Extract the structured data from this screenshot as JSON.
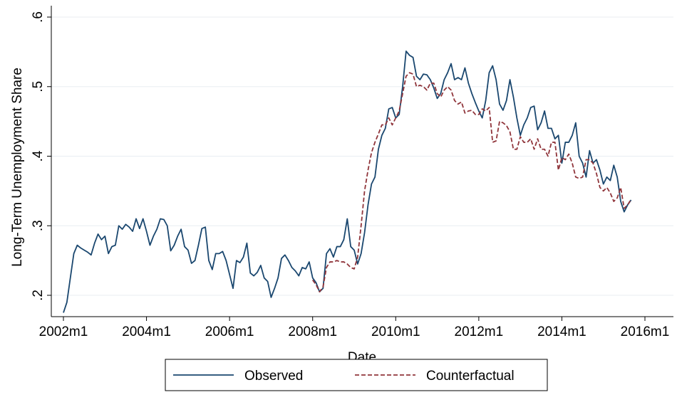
{
  "chart_data": {
    "type": "line",
    "x_label": "Date",
    "y_label": "Long-Term Unemployment Share",
    "x": [
      "2002m1",
      "2002m2",
      "2002m3",
      "2002m4",
      "2002m5",
      "2002m6",
      "2002m7",
      "2002m8",
      "2002m9",
      "2002m10",
      "2002m11",
      "2002m12",
      "2003m1",
      "2003m2",
      "2003m3",
      "2003m4",
      "2003m5",
      "2003m6",
      "2003m7",
      "2003m8",
      "2003m9",
      "2003m10",
      "2003m11",
      "2003m12",
      "2004m1",
      "2004m2",
      "2004m3",
      "2004m4",
      "2004m5",
      "2004m6",
      "2004m7",
      "2004m8",
      "2004m9",
      "2004m10",
      "2004m11",
      "2004m12",
      "2005m1",
      "2005m2",
      "2005m3",
      "2005m4",
      "2005m5",
      "2005m6",
      "2005m7",
      "2005m8",
      "2005m9",
      "2005m10",
      "2005m11",
      "2005m12",
      "2006m1",
      "2006m2",
      "2006m3",
      "2006m4",
      "2006m5",
      "2006m6",
      "2006m7",
      "2006m8",
      "2006m9",
      "2006m10",
      "2006m11",
      "2006m12",
      "2007m1",
      "2007m2",
      "2007m3",
      "2007m4",
      "2007m5",
      "2007m6",
      "2007m7",
      "2007m8",
      "2007m9",
      "2007m10",
      "2007m11",
      "2007m12",
      "2008m1",
      "2008m2",
      "2008m3",
      "2008m4",
      "2008m5",
      "2008m6",
      "2008m7",
      "2008m8",
      "2008m9",
      "2008m10",
      "2008m11",
      "2008m12",
      "2009m1",
      "2009m2",
      "2009m3",
      "2009m4",
      "2009m5",
      "2009m6",
      "2009m7",
      "2009m8",
      "2009m9",
      "2009m10",
      "2009m11",
      "2009m12",
      "2010m1",
      "2010m2",
      "2010m3",
      "2010m4",
      "2010m5",
      "2010m6",
      "2010m7",
      "2010m8",
      "2010m9",
      "2010m10",
      "2010m11",
      "2010m12",
      "2011m1",
      "2011m2",
      "2011m3",
      "2011m4",
      "2011m5",
      "2011m6",
      "2011m7",
      "2011m8",
      "2011m9",
      "2011m10",
      "2011m11",
      "2011m12",
      "2012m1",
      "2012m2",
      "2012m3",
      "2012m4",
      "2012m5",
      "2012m6",
      "2012m7",
      "2012m8",
      "2012m9",
      "2012m10",
      "2012m11",
      "2012m12",
      "2013m1",
      "2013m2",
      "2013m3",
      "2013m4",
      "2013m5",
      "2013m6",
      "2013m7",
      "2013m8",
      "2013m9",
      "2013m10",
      "2013m11",
      "2013m12",
      "2014m1",
      "2014m2",
      "2014m3",
      "2014m4",
      "2014m5",
      "2014m6",
      "2014m7",
      "2014m8",
      "2014m9",
      "2014m10",
      "2014m11",
      "2014m12",
      "2015m1",
      "2015m2",
      "2015m3",
      "2015m4",
      "2015m5",
      "2015m6",
      "2015m7",
      "2015m8",
      "2015m9"
    ],
    "series": [
      {
        "name": "Observed",
        "color": "#1a476f",
        "dash": false,
        "values": [
          0.175,
          0.19,
          0.225,
          0.26,
          0.272,
          0.268,
          0.265,
          0.262,
          0.258,
          0.275,
          0.288,
          0.28,
          0.285,
          0.26,
          0.27,
          0.272,
          0.3,
          0.295,
          0.302,
          0.298,
          0.292,
          0.31,
          0.296,
          0.31,
          0.292,
          0.272,
          0.285,
          0.295,
          0.31,
          0.309,
          0.3,
          0.264,
          0.272,
          0.285,
          0.295,
          0.27,
          0.265,
          0.246,
          0.25,
          0.272,
          0.296,
          0.298,
          0.25,
          0.237,
          0.26,
          0.26,
          0.263,
          0.25,
          0.23,
          0.21,
          0.25,
          0.247,
          0.255,
          0.275,
          0.232,
          0.228,
          0.233,
          0.243,
          0.225,
          0.22,
          0.197,
          0.21,
          0.225,
          0.253,
          0.258,
          0.25,
          0.24,
          0.235,
          0.228,
          0.24,
          0.238,
          0.248,
          0.225,
          0.218,
          0.205,
          0.21,
          0.26,
          0.267,
          0.255,
          0.27,
          0.27,
          0.28,
          0.31,
          0.27,
          0.265,
          0.245,
          0.26,
          0.29,
          0.33,
          0.36,
          0.37,
          0.41,
          0.43,
          0.44,
          0.468,
          0.47,
          0.455,
          0.46,
          0.5,
          0.551,
          0.545,
          0.542,
          0.515,
          0.51,
          0.518,
          0.517,
          0.51,
          0.498,
          0.483,
          0.49,
          0.51,
          0.52,
          0.533,
          0.51,
          0.513,
          0.51,
          0.527,
          0.505,
          0.49,
          0.477,
          0.465,
          0.455,
          0.48,
          0.52,
          0.53,
          0.51,
          0.475,
          0.466,
          0.48,
          0.51,
          0.485,
          0.455,
          0.43,
          0.445,
          0.455,
          0.47,
          0.472,
          0.438,
          0.448,
          0.465,
          0.44,
          0.44,
          0.425,
          0.43,
          0.39,
          0.42,
          0.42,
          0.43,
          0.448,
          0.4,
          0.39,
          0.37,
          0.408,
          0.39,
          0.395,
          0.38,
          0.36,
          0.37,
          0.365,
          0.387,
          0.37,
          0.335,
          0.32,
          0.33,
          0.337
        ]
      },
      {
        "name": "Counterfactual",
        "color": "#90353b",
        "dash": true,
        "values": [
          null,
          null,
          null,
          null,
          null,
          null,
          null,
          null,
          null,
          null,
          null,
          null,
          null,
          null,
          null,
          null,
          null,
          null,
          null,
          null,
          null,
          null,
          null,
          null,
          null,
          null,
          null,
          null,
          null,
          null,
          null,
          null,
          null,
          null,
          null,
          null,
          null,
          null,
          null,
          null,
          null,
          null,
          null,
          null,
          null,
          null,
          null,
          null,
          null,
          null,
          null,
          null,
          null,
          null,
          null,
          null,
          null,
          null,
          null,
          null,
          null,
          null,
          null,
          null,
          null,
          null,
          null,
          null,
          null,
          null,
          null,
          null,
          0.222,
          0.215,
          0.205,
          0.212,
          0.24,
          0.248,
          0.248,
          0.25,
          0.248,
          0.248,
          0.245,
          0.24,
          0.238,
          0.255,
          0.3,
          0.35,
          0.38,
          0.405,
          0.42,
          0.432,
          0.445,
          0.445,
          0.455,
          0.445,
          0.455,
          0.465,
          0.49,
          0.515,
          0.52,
          0.518,
          0.5,
          0.502,
          0.5,
          0.495,
          0.505,
          0.505,
          0.49,
          0.485,
          0.495,
          0.5,
          0.495,
          0.48,
          0.475,
          0.478,
          0.462,
          0.465,
          0.466,
          0.46,
          0.46,
          0.468,
          0.465,
          0.47,
          0.42,
          0.422,
          0.45,
          0.448,
          0.444,
          0.435,
          0.41,
          0.41,
          0.428,
          0.42,
          0.42,
          0.425,
          0.41,
          0.425,
          0.41,
          0.41,
          0.4,
          0.42,
          0.42,
          0.38,
          0.398,
          0.395,
          0.403,
          0.39,
          0.37,
          0.368,
          0.37,
          0.395,
          0.395,
          0.39,
          0.375,
          0.355,
          0.35,
          0.355,
          0.347,
          0.335,
          0.34,
          0.355,
          0.325,
          0.33,
          0.338
        ]
      }
    ],
    "xlim": [
      "2002m1",
      "2016m1"
    ],
    "xticks": [
      "2002m1",
      "2004m1",
      "2006m1",
      "2008m1",
      "2010m1",
      "2012m1",
      "2014m1",
      "2016m1"
    ],
    "ylim": [
      0.2,
      0.6
    ],
    "yticks": [
      {
        "value": 0.2,
        "label": ".2"
      },
      {
        "value": 0.3,
        "label": ".3"
      },
      {
        "value": 0.4,
        "label": ".4"
      },
      {
        "value": 0.5,
        "label": ".5"
      },
      {
        "value": 0.6,
        "label": ".6"
      }
    ],
    "grid": true
  }
}
